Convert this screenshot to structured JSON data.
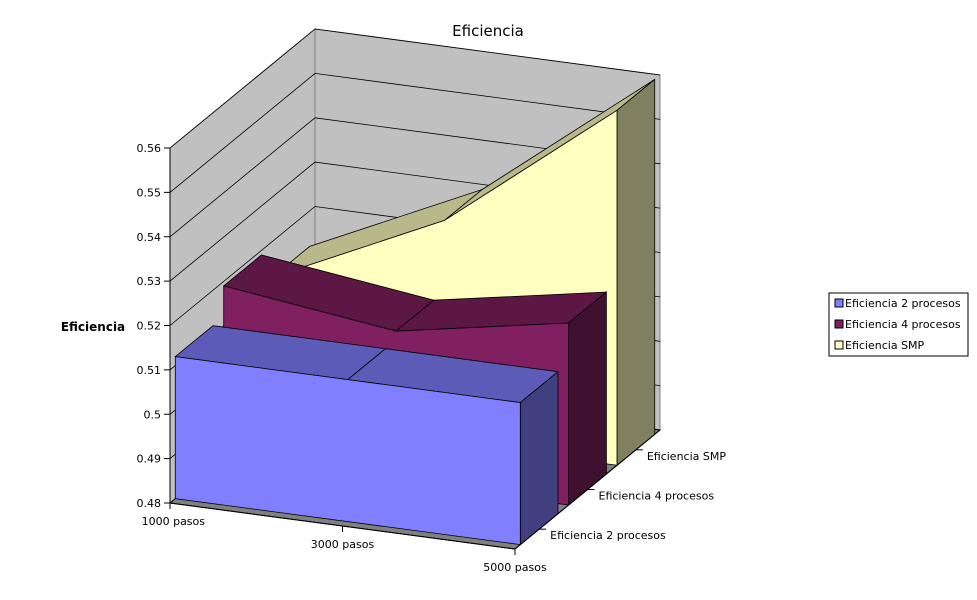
{
  "chart_data": {
    "type": "area",
    "title": "Eficiencia",
    "xlabel": "",
    "ylabel": "Eficiencia",
    "categories": [
      "1000 pasos",
      "3000 pasos",
      "5000 pasos"
    ],
    "series": [
      {
        "name": "Eficiencia 2 procesos",
        "values": [
          0.512,
          0.512,
          0.512
        ],
        "color": "#8080FF"
      },
      {
        "name": "Eficiencia 4 procesos",
        "values": [
          0.519,
          0.514,
          0.521
        ],
        "color": "#802060"
      },
      {
        "name": "Eficiencia SMP",
        "values": [
          0.512,
          0.53,
          0.56
        ],
        "color": "#FFFFC0"
      }
    ],
    "yticks": [
      "0.48",
      "0.49",
      "0.5",
      "0.51",
      "0.52",
      "0.53",
      "0.54",
      "0.55",
      "0.56"
    ],
    "ylim": [
      0.48,
      0.56
    ],
    "grid": true,
    "legend_position": "right"
  }
}
